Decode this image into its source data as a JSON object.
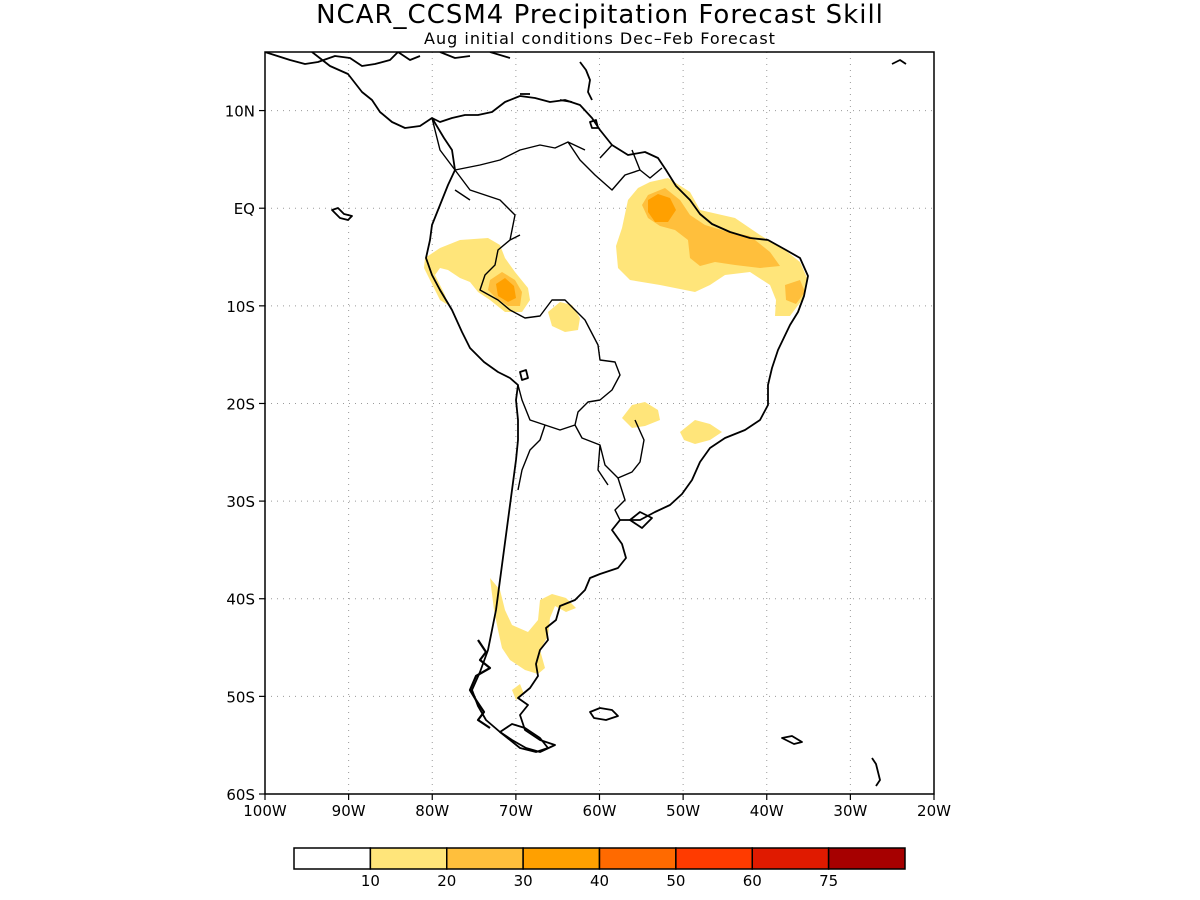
{
  "title": "NCAR_CCSM4 Precipitation Forecast Skill",
  "subtitle": "Aug initial conditions  Dec–Feb Forecast",
  "map": {
    "lon_range": [
      -100,
      -20
    ],
    "lat_range": [
      -60,
      16
    ],
    "lat_ticks": [
      {
        "value": 10,
        "label": "10N"
      },
      {
        "value": 0,
        "label": "EQ"
      },
      {
        "value": -10,
        "label": "10S"
      },
      {
        "value": -20,
        "label": "20S"
      },
      {
        "value": -30,
        "label": "30S"
      },
      {
        "value": -40,
        "label": "40S"
      },
      {
        "value": -50,
        "label": "50S"
      },
      {
        "value": -60,
        "label": "60S"
      }
    ],
    "lon_ticks": [
      {
        "value": -100,
        "label": "100W"
      },
      {
        "value": -90,
        "label": "90W"
      },
      {
        "value": -80,
        "label": "80W"
      },
      {
        "value": -70,
        "label": "70W"
      },
      {
        "value": -60,
        "label": "60W"
      },
      {
        "value": -50,
        "label": "50W"
      },
      {
        "value": -40,
        "label": "40W"
      },
      {
        "value": -30,
        "label": "30W"
      },
      {
        "value": -20,
        "label": "20W"
      }
    ],
    "gridlines": "dotted"
  },
  "colorbar": {
    "colors": [
      "#ffffff",
      "#ffe57a",
      "#ffbf3c",
      "#ffa000",
      "#ff6a00",
      "#ff3b00",
      "#e01a00",
      "#a60000"
    ],
    "labels": [
      "10",
      "20",
      "30",
      "40",
      "50",
      "60",
      "75"
    ]
  }
}
